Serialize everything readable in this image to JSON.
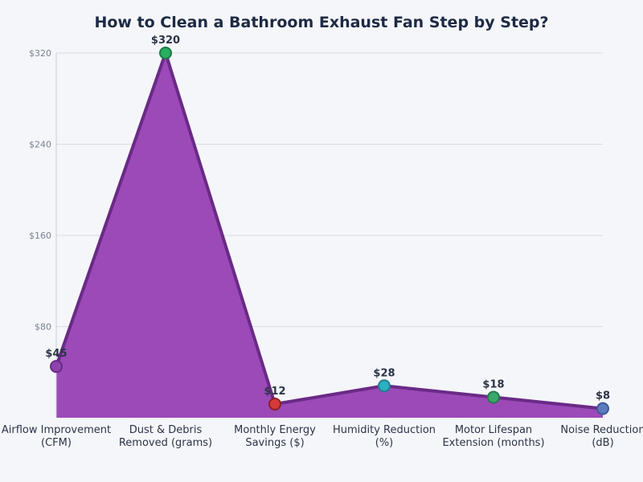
{
  "chart_data": {
    "type": "area",
    "title": "How to Clean a Bathroom Exhaust Fan Step by Step?",
    "xlabel": "",
    "ylabel": "",
    "categories": [
      [
        "Airflow Improvement",
        "(CFM)"
      ],
      [
        "Dust & Debris",
        "Removed (grams)"
      ],
      [
        "Monthly Energy",
        "Savings ($)"
      ],
      [
        "Humidity Reduction",
        "(%)"
      ],
      [
        "Motor Lifespan",
        "Extension (months)"
      ],
      [
        "Noise Reduction",
        "(dB)"
      ]
    ],
    "values": [
      45,
      320,
      12,
      28,
      18,
      8
    ],
    "data_labels": [
      "$45",
      "$320",
      "$12",
      "$28",
      "$18",
      "$8"
    ],
    "ylim": [
      0,
      320
    ],
    "yticks": [
      80,
      160,
      240,
      320
    ],
    "ytick_labels": [
      "$80",
      "$160",
      "$240",
      "$320"
    ],
    "grid": true,
    "colors": {
      "area_fill": "#9b4ab8",
      "area_line": "#6a2a86",
      "markers": [
        "#8e44ad",
        "#27ae60",
        "#d63a3a",
        "#2bb0c2",
        "#3aa86b",
        "#5b7bbf"
      ],
      "marker_strokes": [
        "#6a2a86",
        "#1d7a45",
        "#8e1f1f",
        "#1f7f8c",
        "#267a4a",
        "#3d5a96"
      ]
    }
  }
}
